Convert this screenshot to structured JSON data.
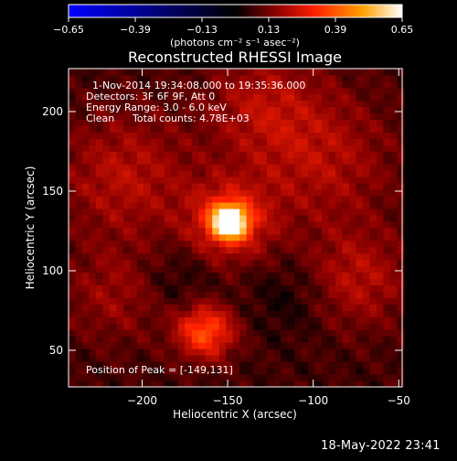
{
  "colorbar": {
    "ticks": [
      "-0.65",
      "-0.39",
      "-0.13",
      "0.13",
      "0.39",
      "0.65"
    ],
    "unit_label": "(photons cm⁻² s⁻¹ asec⁻²)",
    "colors": [
      "#0000ff",
      "#000000",
      "#8b0000",
      "#ff2000",
      "#ffa000",
      "#ffffff"
    ]
  },
  "timestamp": "18-May-2022 23:41",
  "chart_data": {
    "type": "heatmap",
    "title": "Reconstructed RHESSI Image",
    "xlabel": "Heliocentric X (arcsec)",
    "ylabel": "Heliocentric Y (arcsec)",
    "xlim": [
      -243,
      -48
    ],
    "ylim": [
      27,
      227
    ],
    "x_ticks": [
      {
        "v": -200,
        "label": "−200"
      },
      {
        "v": -150,
        "label": "−150"
      },
      {
        "v": -100,
        "label": "−100"
      },
      {
        "v": -50,
        "label": "−50"
      }
    ],
    "y_ticks": [
      {
        "v": 50,
        "label": "50"
      },
      {
        "v": 100,
        "label": "100"
      },
      {
        "v": 150,
        "label": "150"
      },
      {
        "v": 200,
        "label": "200"
      }
    ],
    "annotations": [
      "1-Nov-2014 19:34:08.000 to 19:35:36.000",
      "Detectors: 3F 6F 9F, Att 0",
      "Energy Range: 3.0 - 6.0 keV",
      "Clean",
      "Total counts: 4.78E+03"
    ],
    "peak_label": "Position of Peak = [-149,131]",
    "peak": {
      "x": -149,
      "y": 131,
      "value": 0.65
    },
    "vrange": [
      -0.65,
      0.65
    ],
    "sources": [
      {
        "x": -149,
        "y": 131,
        "sigma": 7,
        "amp": 0.62
      },
      {
        "x": -149,
        "y": 131,
        "sigma": 18,
        "amp": 0.22
      },
      {
        "x": -163,
        "y": 62,
        "sigma": 12,
        "amp": 0.3
      },
      {
        "x": -210,
        "y": 160,
        "sigma": 28,
        "amp": 0.14
      },
      {
        "x": -95,
        "y": 170,
        "sigma": 30,
        "amp": 0.13
      },
      {
        "x": -75,
        "y": 95,
        "sigma": 22,
        "amp": 0.14
      },
      {
        "x": -130,
        "y": 205,
        "sigma": 24,
        "amp": 0.12
      },
      {
        "x": -215,
        "y": 85,
        "sigma": 22,
        "amp": 0.1
      },
      {
        "x": -180,
        "y": 95,
        "sigma": 16,
        "amp": -0.06
      },
      {
        "x": -112,
        "y": 85,
        "sigma": 18,
        "amp": -0.06
      }
    ]
  }
}
